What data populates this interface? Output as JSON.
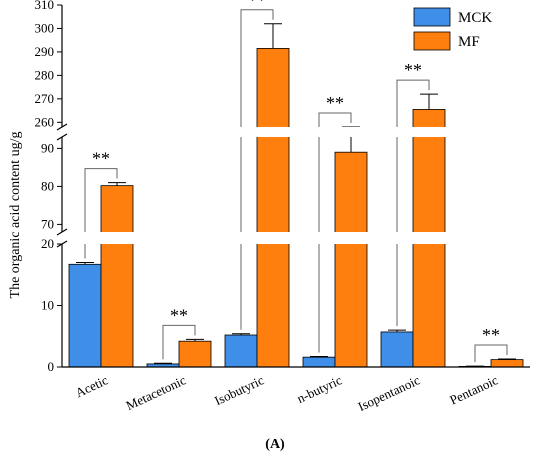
{
  "chart_data": {
    "type": "bar",
    "panel_label": "(A)",
    "ylabel": "The organic acid content ug/g",
    "categories": [
      "Acetic",
      "Metacetonic",
      "Isobutyric",
      "n-butyric",
      "Isopentanoic",
      "Pentanoic"
    ],
    "series": [
      {
        "name": "MCK",
        "color": "#3F8EE8",
        "values": [
          16.7,
          0.5,
          5.2,
          1.6,
          5.7,
          0.1
        ],
        "errors": [
          0.3,
          0.1,
          0.2,
          0.1,
          0.3,
          0.05
        ]
      },
      {
        "name": "MF",
        "color": "#FF7F0E",
        "values": [
          80.2,
          4.2,
          291.5,
          89.0,
          265.5,
          1.2
        ],
        "errors": [
          0.8,
          0.3,
          10.5,
          4.3,
          6.5,
          0.1
        ]
      }
    ],
    "significance": [
      "**",
      "**",
      "**",
      "**",
      "**",
      "**"
    ],
    "axis_segments": [
      {
        "range": [
          0,
          20
        ],
        "ticks": [
          "0",
          "10",
          "20"
        ]
      },
      {
        "range": [
          68,
          93
        ],
        "ticks": [
          "70",
          "80",
          "90"
        ]
      },
      {
        "range": [
          258,
          310
        ],
        "ticks": [
          "260",
          "270",
          "280",
          "290",
          "300",
          "310"
        ]
      }
    ],
    "legend_position": "top-right",
    "grid": false
  }
}
